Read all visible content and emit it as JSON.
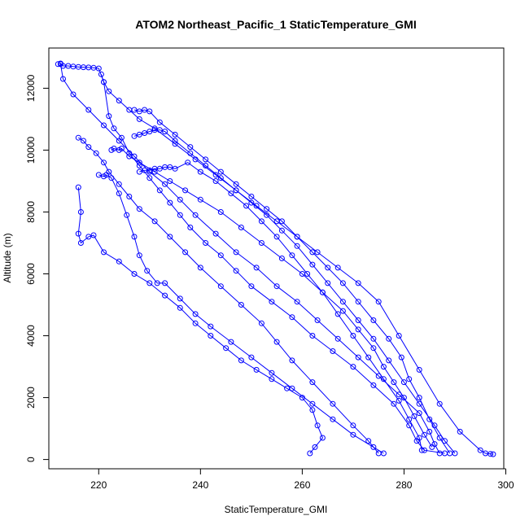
{
  "chart_data": {
    "type": "scatter",
    "title": "ATOM2 Northeast_Pacific_1 StaticTemperature_GMI",
    "xlabel": "StaticTemperature_GMI",
    "ylabel": "Altitude (m)",
    "xlim": [
      210.2,
      299.6
    ],
    "ylim": [
      -300,
      13300
    ],
    "xticks": [
      220,
      240,
      260,
      280,
      300
    ],
    "yticks": [
      0,
      2000,
      4000,
      6000,
      8000,
      10000,
      12000
    ],
    "grid": false,
    "legend": "none",
    "color": "#0000ff",
    "marker": "open-circle",
    "connected": true,
    "series": [
      {
        "name": "",
        "points": [
          {
            "x": 212.0,
            "y": 12780
          },
          {
            "x": 212.5,
            "y": 12800
          },
          {
            "x": 213.0,
            "y": 12720
          },
          {
            "x": 214.0,
            "y": 12720
          },
          {
            "x": 215.0,
            "y": 12700
          },
          {
            "x": 216.0,
            "y": 12690
          },
          {
            "x": 217.0,
            "y": 12680
          },
          {
            "x": 218.0,
            "y": 12670
          },
          {
            "x": 219.0,
            "y": 12660
          },
          {
            "x": 220.0,
            "y": 12640
          },
          {
            "x": 221.0,
            "y": 12200
          },
          {
            "x": 222.0,
            "y": 11900
          },
          {
            "x": 224.0,
            "y": 11600
          },
          {
            "x": 226.0,
            "y": 11300
          },
          {
            "x": 228.0,
            "y": 11000
          },
          {
            "x": 231.0,
            "y": 10700
          },
          {
            "x": 235.0,
            "y": 10200
          },
          {
            "x": 239.0,
            "y": 9700
          },
          {
            "x": 243.0,
            "y": 9200
          },
          {
            "x": 247.0,
            "y": 8700
          },
          {
            "x": 251.0,
            "y": 8200
          },
          {
            "x": 255.0,
            "y": 7700
          },
          {
            "x": 259.0,
            "y": 7200
          },
          {
            "x": 263.0,
            "y": 6700
          },
          {
            "x": 267.0,
            "y": 6200
          },
          {
            "x": 271.0,
            "y": 5700
          },
          {
            "x": 275.0,
            "y": 5100
          },
          {
            "x": 279.0,
            "y": 4000
          },
          {
            "x": 283.0,
            "y": 2900
          },
          {
            "x": 287.0,
            "y": 1800
          },
          {
            "x": 291.0,
            "y": 900
          },
          {
            "x": 295.0,
            "y": 300
          },
          {
            "x": 296.0,
            "y": 200
          },
          {
            "x": 297.0,
            "y": 180
          },
          {
            "x": 297.5,
            "y": 170
          }
        ]
      },
      {
        "name": "",
        "points": [
          {
            "x": 212.5,
            "y": 12780
          },
          {
            "x": 213.0,
            "y": 12300
          },
          {
            "x": 215.0,
            "y": 11800
          },
          {
            "x": 218.0,
            "y": 11300
          },
          {
            "x": 221.0,
            "y": 10800
          },
          {
            "x": 224.0,
            "y": 10300
          },
          {
            "x": 227.0,
            "y": 9800
          },
          {
            "x": 230.0,
            "y": 9300
          },
          {
            "x": 233.0,
            "y": 8900
          },
          {
            "x": 236.0,
            "y": 8400
          },
          {
            "x": 239.0,
            "y": 7900
          },
          {
            "x": 243.0,
            "y": 7300
          },
          {
            "x": 247.0,
            "y": 6700
          },
          {
            "x": 251.0,
            "y": 6200
          },
          {
            "x": 255.0,
            "y": 5600
          },
          {
            "x": 259.0,
            "y": 5100
          },
          {
            "x": 263.0,
            "y": 4500
          },
          {
            "x": 267.0,
            "y": 3900
          },
          {
            "x": 271.0,
            "y": 3300
          },
          {
            "x": 275.0,
            "y": 2700
          },
          {
            "x": 279.0,
            "y": 2100
          },
          {
            "x": 283.0,
            "y": 1500
          },
          {
            "x": 285.0,
            "y": 900
          },
          {
            "x": 286.0,
            "y": 500
          },
          {
            "x": 287.0,
            "y": 200
          }
        ]
      },
      {
        "name": "",
        "points": [
          {
            "x": 220.5,
            "y": 12450
          },
          {
            "x": 221.0,
            "y": 12200
          },
          {
            "x": 222.0,
            "y": 11100
          },
          {
            "x": 223.0,
            "y": 10700
          },
          {
            "x": 224.5,
            "y": 10400
          },
          {
            "x": 226.0,
            "y": 9900
          },
          {
            "x": 228.0,
            "y": 9500
          },
          {
            "x": 230.0,
            "y": 9100
          },
          {
            "x": 232.0,
            "y": 8700
          },
          {
            "x": 234.0,
            "y": 8300
          },
          {
            "x": 236.0,
            "y": 7900
          },
          {
            "x": 238.0,
            "y": 7500
          },
          {
            "x": 241.0,
            "y": 7000
          },
          {
            "x": 244.0,
            "y": 6600
          },
          {
            "x": 247.0,
            "y": 6100
          },
          {
            "x": 250.0,
            "y": 5600
          },
          {
            "x": 254.0,
            "y": 5100
          },
          {
            "x": 258.0,
            "y": 4600
          },
          {
            "x": 262.0,
            "y": 4000
          },
          {
            "x": 266.0,
            "y": 3500
          },
          {
            "x": 270.0,
            "y": 3000
          },
          {
            "x": 274.0,
            "y": 2400
          },
          {
            "x": 278.0,
            "y": 1800
          },
          {
            "x": 281.0,
            "y": 1100
          },
          {
            "x": 282.5,
            "y": 600
          },
          {
            "x": 284.0,
            "y": 300
          },
          {
            "x": 288.0,
            "y": 200
          }
        ]
      },
      {
        "name": "",
        "points": [
          {
            "x": 227.0,
            "y": 11300
          },
          {
            "x": 228.0,
            "y": 11250
          },
          {
            "x": 229.0,
            "y": 11300
          },
          {
            "x": 230.0,
            "y": 11250
          },
          {
            "x": 232.0,
            "y": 10900
          },
          {
            "x": 235.0,
            "y": 10500
          },
          {
            "x": 238.0,
            "y": 10100
          },
          {
            "x": 241.0,
            "y": 9700
          },
          {
            "x": 244.0,
            "y": 9300
          },
          {
            "x": 247.0,
            "y": 8900
          },
          {
            "x": 250.0,
            "y": 8500
          },
          {
            "x": 253.0,
            "y": 8100
          },
          {
            "x": 256.0,
            "y": 7700
          },
          {
            "x": 259.0,
            "y": 7200
          },
          {
            "x": 262.0,
            "y": 6700
          },
          {
            "x": 265.0,
            "y": 6200
          },
          {
            "x": 268.0,
            "y": 5700
          },
          {
            "x": 271.0,
            "y": 5100
          },
          {
            "x": 274.0,
            "y": 4500
          },
          {
            "x": 277.0,
            "y": 3900
          },
          {
            "x": 279.5,
            "y": 3300
          },
          {
            "x": 281.0,
            "y": 2600
          },
          {
            "x": 283.0,
            "y": 2000
          },
          {
            "x": 285.0,
            "y": 1300
          },
          {
            "x": 287.0,
            "y": 700
          },
          {
            "x": 289.0,
            "y": 200
          }
        ]
      },
      {
        "name": "",
        "points": [
          {
            "x": 222.5,
            "y": 10000
          },
          {
            "x": 223.0,
            "y": 10050
          },
          {
            "x": 224.0,
            "y": 10000
          },
          {
            "x": 224.5,
            "y": 10050
          },
          {
            "x": 226.0,
            "y": 9800
          },
          {
            "x": 228.0,
            "y": 9600
          },
          {
            "x": 231.0,
            "y": 9300
          },
          {
            "x": 234.0,
            "y": 9000
          },
          {
            "x": 237.0,
            "y": 8700
          },
          {
            "x": 240.0,
            "y": 8400
          },
          {
            "x": 244.0,
            "y": 8000
          },
          {
            "x": 248.0,
            "y": 7500
          },
          {
            "x": 252.0,
            "y": 7000
          },
          {
            "x": 256.0,
            "y": 6500
          },
          {
            "x": 260.0,
            "y": 6000
          },
          {
            "x": 264.0,
            "y": 5400
          },
          {
            "x": 268.0,
            "y": 4800
          },
          {
            "x": 271.0,
            "y": 4200
          },
          {
            "x": 274.0,
            "y": 3600
          },
          {
            "x": 276.0,
            "y": 3000
          },
          {
            "x": 278.0,
            "y": 2500
          },
          {
            "x": 280.0,
            "y": 2000
          },
          {
            "x": 282.0,
            "y": 1400
          },
          {
            "x": 284.0,
            "y": 800
          },
          {
            "x": 285.5,
            "y": 400
          }
        ]
      },
      {
        "name": "",
        "points": [
          {
            "x": 227.0,
            "y": 10450
          },
          {
            "x": 228.0,
            "y": 10500
          },
          {
            "x": 229.0,
            "y": 10550
          },
          {
            "x": 230.0,
            "y": 10600
          },
          {
            "x": 231.0,
            "y": 10650
          },
          {
            "x": 232.0,
            "y": 10650
          },
          {
            "x": 233.0,
            "y": 10600
          },
          {
            "x": 235.0,
            "y": 10300
          },
          {
            "x": 238.0,
            "y": 9900
          },
          {
            "x": 241.0,
            "y": 9500
          },
          {
            "x": 244.0,
            "y": 9100
          },
          {
            "x": 247.0,
            "y": 8700
          },
          {
            "x": 250.0,
            "y": 8300
          },
          {
            "x": 253.0,
            "y": 7900
          },
          {
            "x": 256.0,
            "y": 7400
          },
          {
            "x": 259.0,
            "y": 6900
          },
          {
            "x": 262.0,
            "y": 6300
          },
          {
            "x": 265.0,
            "y": 5700
          },
          {
            "x": 268.0,
            "y": 5100
          },
          {
            "x": 271.0,
            "y": 4500
          },
          {
            "x": 274.0,
            "y": 3900
          },
          {
            "x": 277.0,
            "y": 3200
          },
          {
            "x": 280.0,
            "y": 2500
          },
          {
            "x": 283.0,
            "y": 1800
          },
          {
            "x": 286.0,
            "y": 1100
          },
          {
            "x": 288.0,
            "y": 600
          },
          {
            "x": 290.0,
            "y": 200
          }
        ]
      },
      {
        "name": "",
        "points": [
          {
            "x": 216.0,
            "y": 10400
          },
          {
            "x": 217.0,
            "y": 10300
          },
          {
            "x": 218.0,
            "y": 10100
          },
          {
            "x": 219.5,
            "y": 9900
          },
          {
            "x": 221.0,
            "y": 9600
          },
          {
            "x": 222.0,
            "y": 9300
          },
          {
            "x": 224.0,
            "y": 8900
          },
          {
            "x": 226.0,
            "y": 8500
          },
          {
            "x": 228.0,
            "y": 8100
          },
          {
            "x": 231.0,
            "y": 7700
          },
          {
            "x": 234.0,
            "y": 7200
          },
          {
            "x": 237.0,
            "y": 6700
          },
          {
            "x": 240.0,
            "y": 6200
          },
          {
            "x": 244.0,
            "y": 5600
          },
          {
            "x": 248.0,
            "y": 5000
          },
          {
            "x": 252.0,
            "y": 4400
          },
          {
            "x": 255.0,
            "y": 3800
          },
          {
            "x": 258.0,
            "y": 3200
          },
          {
            "x": 262.0,
            "y": 2500
          },
          {
            "x": 266.0,
            "y": 1800
          },
          {
            "x": 270.0,
            "y": 1100
          },
          {
            "x": 273.0,
            "y": 600
          },
          {
            "x": 275.0,
            "y": 200
          }
        ]
      },
      {
        "name": "",
        "points": [
          {
            "x": 216.0,
            "y": 8800
          },
          {
            "x": 216.5,
            "y": 8000
          },
          {
            "x": 216.0,
            "y": 7300
          },
          {
            "x": 216.5,
            "y": 7000
          },
          {
            "x": 218.0,
            "y": 7200
          },
          {
            "x": 219.0,
            "y": 7250
          },
          {
            "x": 221.0,
            "y": 6700
          },
          {
            "x": 224.0,
            "y": 6400
          },
          {
            "x": 227.0,
            "y": 6000
          },
          {
            "x": 230.0,
            "y": 5700
          },
          {
            "x": 233.0,
            "y": 5300
          },
          {
            "x": 236.0,
            "y": 4900
          },
          {
            "x": 239.0,
            "y": 4400
          },
          {
            "x": 242.0,
            "y": 4000
          },
          {
            "x": 245.0,
            "y": 3600
          },
          {
            "x": 248.0,
            "y": 3200
          },
          {
            "x": 251.0,
            "y": 2900
          },
          {
            "x": 254.0,
            "y": 2600
          },
          {
            "x": 257.0,
            "y": 2300
          },
          {
            "x": 260.0,
            "y": 2000
          },
          {
            "x": 262.0,
            "y": 1600
          },
          {
            "x": 263.0,
            "y": 1100
          },
          {
            "x": 264.0,
            "y": 700
          },
          {
            "x": 262.5,
            "y": 400
          },
          {
            "x": 261.5,
            "y": 200
          }
        ]
      },
      {
        "name": "",
        "points": [
          {
            "x": 220.0,
            "y": 9200
          },
          {
            "x": 221.0,
            "y": 9150
          },
          {
            "x": 221.5,
            "y": 9200
          },
          {
            "x": 222.5,
            "y": 9100
          },
          {
            "x": 224.0,
            "y": 8600
          },
          {
            "x": 225.5,
            "y": 7900
          },
          {
            "x": 227.0,
            "y": 7200
          },
          {
            "x": 228.0,
            "y": 6600
          },
          {
            "x": 229.5,
            "y": 6100
          },
          {
            "x": 231.5,
            "y": 5700
          },
          {
            "x": 233.0,
            "y": 5700
          },
          {
            "x": 236.0,
            "y": 5200
          },
          {
            "x": 239.0,
            "y": 4700
          },
          {
            "x": 242.0,
            "y": 4300
          },
          {
            "x": 246.0,
            "y": 3800
          },
          {
            "x": 250.0,
            "y": 3300
          },
          {
            "x": 254.0,
            "y": 2800
          },
          {
            "x": 258.0,
            "y": 2300
          },
          {
            "x": 262.0,
            "y": 1800
          },
          {
            "x": 266.0,
            "y": 1300
          },
          {
            "x": 270.0,
            "y": 800
          },
          {
            "x": 274.0,
            "y": 400
          },
          {
            "x": 276.0,
            "y": 200
          }
        ]
      },
      {
        "name": "",
        "points": [
          {
            "x": 228.0,
            "y": 9300
          },
          {
            "x": 229.0,
            "y": 9350
          },
          {
            "x": 230.0,
            "y": 9350
          },
          {
            "x": 231.0,
            "y": 9400
          },
          {
            "x": 232.0,
            "y": 9400
          },
          {
            "x": 233.0,
            "y": 9450
          },
          {
            "x": 234.0,
            "y": 9450
          },
          {
            "x": 235.0,
            "y": 9400
          },
          {
            "x": 237.5,
            "y": 9600
          },
          {
            "x": 240.0,
            "y": 9300
          },
          {
            "x": 243.0,
            "y": 9000
          },
          {
            "x": 246.0,
            "y": 8600
          },
          {
            "x": 249.0,
            "y": 8200
          },
          {
            "x": 252.0,
            "y": 7700
          },
          {
            "x": 255.0,
            "y": 7200
          },
          {
            "x": 258.0,
            "y": 6600
          },
          {
            "x": 261.0,
            "y": 6000
          },
          {
            "x": 264.0,
            "y": 5400
          },
          {
            "x": 267.0,
            "y": 4700
          },
          {
            "x": 270.0,
            "y": 4000
          },
          {
            "x": 273.0,
            "y": 3300
          },
          {
            "x": 276.0,
            "y": 2600
          },
          {
            "x": 279.0,
            "y": 1900
          },
          {
            "x": 281.0,
            "y": 1300
          },
          {
            "x": 283.0,
            "y": 700
          },
          {
            "x": 283.5,
            "y": 300
          }
        ]
      }
    ]
  }
}
